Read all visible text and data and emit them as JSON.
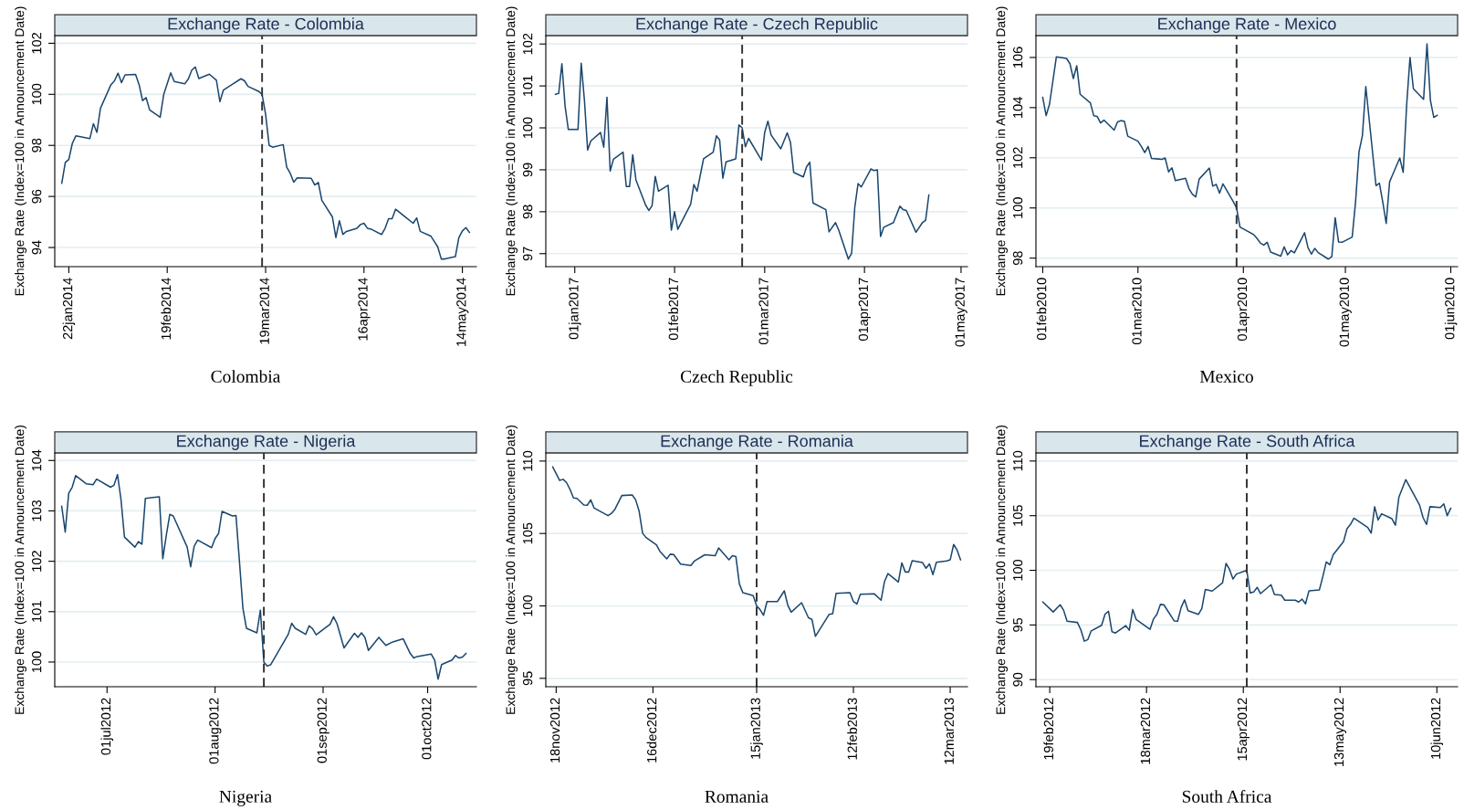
{
  "chart_data": [
    {
      "type": "line",
      "title": "Exchange Rate - Colombia",
      "ylabel": "Exchange Rate (Index=100 in Announcement Date)",
      "color": "#1a476f",
      "grid": "y",
      "x": [
        "2014-01-20",
        "2014-01-21",
        "2014-01-22",
        "2014-01-23",
        "2014-01-24",
        "2014-01-28",
        "2014-01-29",
        "2014-01-30",
        "2014-01-31",
        "2014-02-03",
        "2014-02-04",
        "2014-02-05",
        "2014-02-06",
        "2014-02-07",
        "2014-02-10",
        "2014-02-11",
        "2014-02-12",
        "2014-02-13",
        "2014-02-14",
        "2014-02-17",
        "2014-02-18",
        "2014-02-20",
        "2014-02-21",
        "2014-02-24",
        "2014-02-25",
        "2014-02-26",
        "2014-02-27",
        "2014-02-28",
        "2014-03-03",
        "2014-03-05",
        "2014-03-06",
        "2014-03-07",
        "2014-03-12",
        "2014-03-13",
        "2014-03-14",
        "2014-03-17",
        "2014-03-18",
        "2014-03-19",
        "2014-03-20",
        "2014-03-21",
        "2014-03-24",
        "2014-03-25",
        "2014-03-26",
        "2014-03-27",
        "2014-03-28",
        "2014-04-01",
        "2014-04-02",
        "2014-04-03",
        "2014-04-04",
        "2014-04-07",
        "2014-04-08",
        "2014-04-09",
        "2014-04-10",
        "2014-04-11",
        "2014-04-14",
        "2014-04-15",
        "2014-04-16",
        "2014-04-17",
        "2014-04-18",
        "2014-04-21",
        "2014-04-22",
        "2014-04-23",
        "2014-04-24",
        "2014-04-25",
        "2014-04-28",
        "2014-04-30",
        "2014-05-01",
        "2014-05-02",
        "2014-05-05",
        "2014-05-06",
        "2014-05-07",
        "2014-05-08",
        "2014-05-09",
        "2014-05-12",
        "2014-05-13",
        "2014-05-14",
        "2014-05-15",
        "2014-05-16"
      ],
      "values": [
        96.52,
        97.33,
        97.45,
        98.08,
        98.37,
        98.27,
        98.85,
        98.51,
        99.45,
        100.38,
        100.53,
        100.83,
        100.46,
        100.76,
        100.78,
        100.38,
        99.75,
        99.87,
        99.39,
        99.1,
        99.99,
        100.84,
        100.5,
        100.41,
        100.6,
        100.95,
        101.07,
        100.62,
        100.79,
        100.55,
        99.71,
        100.17,
        100.61,
        100.53,
        100.31,
        100.12,
        100.0,
        99.22,
        98.0,
        97.93,
        98.03,
        97.15,
        96.91,
        96.56,
        96.73,
        96.71,
        96.45,
        96.55,
        95.85,
        95.2,
        94.39,
        95.05,
        94.51,
        94.63,
        94.75,
        94.9,
        94.95,
        94.75,
        94.72,
        94.51,
        94.75,
        95.13,
        95.13,
        95.5,
        95.17,
        94.95,
        95.16,
        94.63,
        94.45,
        94.24,
        94.02,
        93.55,
        93.55,
        93.64,
        94.39,
        94.65,
        94.78,
        94.59
      ],
      "xlim": [
        "2014-01-18",
        "2014-05-18"
      ],
      "xticks": [
        {
          "value": "2014-01-22",
          "label": "22jan2014"
        },
        {
          "value": "2014-02-19",
          "label": "19feb2014"
        },
        {
          "value": "2014-03-19",
          "label": "19mar2014"
        },
        {
          "value": "2014-04-16",
          "label": "16apr2014"
        },
        {
          "value": "2014-05-14",
          "label": "14may2014"
        }
      ],
      "ylim": [
        93.25,
        102.3
      ],
      "yticks": [
        94,
        96,
        98,
        100,
        102
      ],
      "ref_lines": [
        {
          "axis": "x",
          "value": "2014-03-18",
          "color": "#333333",
          "line_style": "dashed"
        }
      ],
      "annotations": [
        "Colombia"
      ]
    },
    {
      "type": "line",
      "title": "Exchange Rate - Czech Republic",
      "ylabel": "Exchange Rate (Index=100 in Announcement Date)",
      "color": "#1a476f",
      "grid": "y",
      "x": [
        "2016-12-26",
        "2016-12-27",
        "2016-12-28",
        "2016-12-29",
        "2016-12-30",
        "2017-01-02",
        "2017-01-03",
        "2017-01-04",
        "2017-01-05",
        "2017-01-06",
        "2017-01-09",
        "2017-01-10",
        "2017-01-11",
        "2017-01-12",
        "2017-01-13",
        "2017-01-16",
        "2017-01-17",
        "2017-01-18",
        "2017-01-19",
        "2017-01-20",
        "2017-01-23",
        "2017-01-24",
        "2017-01-25",
        "2017-01-26",
        "2017-01-27",
        "2017-01-30",
        "2017-01-31",
        "2017-02-01",
        "2017-02-02",
        "2017-02-06",
        "2017-02-07",
        "2017-02-08",
        "2017-02-10",
        "2017-02-13",
        "2017-02-14",
        "2017-02-15",
        "2017-02-16",
        "2017-02-17",
        "2017-02-20",
        "2017-02-21",
        "2017-02-22",
        "2017-02-23",
        "2017-02-24",
        "2017-02-28",
        "2017-03-01",
        "2017-03-02",
        "2017-03-03",
        "2017-03-06",
        "2017-03-08",
        "2017-03-09",
        "2017-03-10",
        "2017-03-13",
        "2017-03-14",
        "2017-03-15",
        "2017-03-16",
        "2017-03-20",
        "2017-03-21",
        "2017-03-23",
        "2017-03-24",
        "2017-03-27",
        "2017-03-28",
        "2017-03-29",
        "2017-03-30",
        "2017-03-31",
        "2017-04-03",
        "2017-04-04",
        "2017-04-05",
        "2017-04-06",
        "2017-04-07",
        "2017-04-10",
        "2017-04-12",
        "2017-04-13",
        "2017-04-14",
        "2017-04-17",
        "2017-04-19",
        "2017-04-20",
        "2017-04-21"
      ],
      "values": [
        100.8,
        100.82,
        101.53,
        100.51,
        99.96,
        99.96,
        101.54,
        100.66,
        99.47,
        99.69,
        99.89,
        99.54,
        100.73,
        98.97,
        99.25,
        99.42,
        98.6,
        98.6,
        99.36,
        98.76,
        98.16,
        98.03,
        98.14,
        98.84,
        98.49,
        98.63,
        97.56,
        98.0,
        97.58,
        98.18,
        98.65,
        98.49,
        99.26,
        99.42,
        99.81,
        99.71,
        98.8,
        99.19,
        99.26,
        100.07,
        100.0,
        99.55,
        99.75,
        99.23,
        99.89,
        100.16,
        99.83,
        99.5,
        99.88,
        99.66,
        98.94,
        98.83,
        99.07,
        99.18,
        98.21,
        98.05,
        97.52,
        97.74,
        97.56,
        96.87,
        97.01,
        98.11,
        98.67,
        98.59,
        99.02,
        98.98,
        99.0,
        97.41,
        97.63,
        97.74,
        98.13,
        98.05,
        98.03,
        97.51,
        97.74,
        97.8,
        98.4
      ],
      "xlim": [
        "2016-12-23",
        "2017-05-03"
      ],
      "xticks": [
        {
          "value": "2017-01-01",
          "label": "01jan2017"
        },
        {
          "value": "2017-02-01",
          "label": "01feb2017"
        },
        {
          "value": "2017-03-01",
          "label": "01mar2017"
        },
        {
          "value": "2017-04-01",
          "label": "01apr2017"
        },
        {
          "value": "2017-05-01",
          "label": "01may2017"
        }
      ],
      "ylim": [
        96.69,
        102.2
      ],
      "yticks": [
        97,
        98,
        99,
        100,
        101,
        102
      ],
      "ref_lines": [
        {
          "axis": "x",
          "value": "2017-02-22",
          "color": "#333333",
          "line_style": "dashed"
        }
      ],
      "annotations": [
        "Czech Republic"
      ]
    },
    {
      "type": "line",
      "title": "Exchange Rate - Mexico",
      "ylabel": "Exchange Rate (Index=100 in Announcement Date)",
      "color": "#1a476f",
      "grid": "y",
      "x": [
        "2010-02-01",
        "2010-02-02",
        "2010-02-03",
        "2010-02-05",
        "2010-02-08",
        "2010-02-09",
        "2010-02-10",
        "2010-02-11",
        "2010-02-12",
        "2010-02-15",
        "2010-02-16",
        "2010-02-17",
        "2010-02-18",
        "2010-02-19",
        "2010-02-22",
        "2010-02-23",
        "2010-02-24",
        "2010-02-25",
        "2010-02-26",
        "2010-03-01",
        "2010-03-02",
        "2010-03-03",
        "2010-03-04",
        "2010-03-05",
        "2010-03-08",
        "2010-03-09",
        "2010-03-10",
        "2010-03-11",
        "2010-03-12",
        "2010-03-15",
        "2010-03-16",
        "2010-03-17",
        "2010-03-18",
        "2010-03-19",
        "2010-03-22",
        "2010-03-23",
        "2010-03-24",
        "2010-03-25",
        "2010-03-26",
        "2010-03-29",
        "2010-03-30",
        "2010-03-31",
        "2010-04-04",
        "2010-04-05",
        "2010-04-06",
        "2010-04-07",
        "2010-04-08",
        "2010-04-09",
        "2010-04-12",
        "2010-04-13",
        "2010-04-14",
        "2010-04-15",
        "2010-04-16",
        "2010-04-19",
        "2010-04-20",
        "2010-04-21",
        "2010-04-22",
        "2010-04-23",
        "2010-04-26",
        "2010-04-27",
        "2010-04-28",
        "2010-04-29",
        "2010-04-30",
        "2010-05-03",
        "2010-05-04",
        "2010-05-05",
        "2010-05-06",
        "2010-05-07",
        "2010-05-10",
        "2010-05-11",
        "2010-05-12",
        "2010-05-13",
        "2010-05-14",
        "2010-05-17",
        "2010-05-18",
        "2010-05-19",
        "2010-05-20",
        "2010-05-21",
        "2010-05-24",
        "2010-05-25",
        "2010-05-26",
        "2010-05-27",
        "2010-05-28"
      ],
      "values": [
        104.41,
        103.68,
        104.14,
        106.02,
        105.96,
        105.75,
        105.16,
        105.67,
        104.53,
        104.19,
        103.68,
        103.65,
        103.39,
        103.5,
        103.1,
        103.43,
        103.48,
        103.46,
        102.86,
        102.66,
        102.45,
        102.21,
        102.45,
        101.97,
        101.94,
        101.99,
        101.44,
        101.6,
        101.09,
        101.18,
        100.77,
        100.55,
        100.44,
        101.15,
        101.59,
        100.87,
        100.94,
        100.59,
        100.96,
        100.26,
        100.0,
        99.24,
        98.94,
        98.79,
        98.6,
        98.52,
        98.63,
        98.24,
        98.08,
        98.45,
        98.13,
        98.3,
        98.21,
        99.01,
        98.42,
        98.16,
        98.39,
        98.22,
        97.96,
        98.06,
        99.61,
        98.64,
        98.63,
        98.84,
        100.26,
        102.23,
        102.88,
        104.84,
        100.89,
        100.99,
        100.23,
        99.38,
        101.04,
        101.99,
        101.42,
        104.07,
        106.0,
        104.75,
        104.33,
        106.54,
        104.29,
        103.61,
        103.69
      ],
      "xlim": [
        "2010-01-30",
        "2010-06-03"
      ],
      "xticks": [
        {
          "value": "2010-02-01",
          "label": "01feb2010"
        },
        {
          "value": "2010-03-01",
          "label": "01mar2010"
        },
        {
          "value": "2010-04-01",
          "label": "01apr2010"
        },
        {
          "value": "2010-05-01",
          "label": "01may2010"
        },
        {
          "value": "2010-06-01",
          "label": "01jun2010"
        }
      ],
      "ylim": [
        97.66,
        106.87
      ],
      "yticks": [
        98,
        100,
        102,
        104,
        106
      ],
      "ref_lines": [
        {
          "axis": "x",
          "value": "2010-03-30",
          "color": "#333333",
          "line_style": "dashed"
        }
      ],
      "annotations": [
        "Mexico"
      ]
    },
    {
      "type": "line",
      "title": "Exchange Rate - Nigeria",
      "ylabel": "Exchange Rate (Index=100 in Announcement Date)",
      "color": "#1a476f",
      "grid": "y",
      "x": [
        "2012-06-18",
        "2012-06-19",
        "2012-06-20",
        "2012-06-21",
        "2012-06-22",
        "2012-06-25",
        "2012-06-27",
        "2012-06-28",
        "2012-07-02",
        "2012-07-03",
        "2012-07-04",
        "2012-07-05",
        "2012-07-06",
        "2012-07-09",
        "2012-07-10",
        "2012-07-11",
        "2012-07-12",
        "2012-07-16",
        "2012-07-17",
        "2012-07-18",
        "2012-07-19",
        "2012-07-20",
        "2012-07-24",
        "2012-07-25",
        "2012-07-26",
        "2012-07-27",
        "2012-07-31",
        "2012-08-01",
        "2012-08-02",
        "2012-08-03",
        "2012-08-06",
        "2012-08-07",
        "2012-08-08",
        "2012-08-09",
        "2012-08-10",
        "2012-08-13",
        "2012-08-14",
        "2012-08-15",
        "2012-08-16",
        "2012-08-17",
        "2012-08-22",
        "2012-08-23",
        "2012-08-24",
        "2012-08-27",
        "2012-08-28",
        "2012-08-29",
        "2012-08-30",
        "2012-09-03",
        "2012-09-04",
        "2012-09-05",
        "2012-09-07",
        "2012-09-10",
        "2012-09-11",
        "2012-09-12",
        "2012-09-13",
        "2012-09-14",
        "2012-09-17",
        "2012-09-19",
        "2012-09-21",
        "2012-09-24",
        "2012-09-26",
        "2012-09-27",
        "2012-09-28",
        "2012-10-02",
        "2012-10-03",
        "2012-10-04",
        "2012-10-05",
        "2012-10-08",
        "2012-10-09",
        "2012-10-10",
        "2012-10-11",
        "2012-10-12"
      ],
      "values": [
        103.09,
        102.58,
        103.35,
        103.47,
        103.7,
        103.54,
        103.52,
        103.63,
        103.47,
        103.51,
        103.72,
        103.23,
        102.48,
        102.28,
        102.39,
        102.34,
        103.25,
        103.28,
        102.05,
        102.51,
        102.93,
        102.9,
        102.28,
        101.89,
        102.3,
        102.42,
        102.27,
        102.45,
        102.55,
        102.99,
        102.9,
        102.91,
        101.99,
        101.06,
        100.67,
        100.58,
        101.03,
        100.0,
        99.92,
        99.95,
        100.55,
        100.77,
        100.67,
        100.55,
        100.72,
        100.66,
        100.54,
        100.75,
        100.9,
        100.76,
        100.28,
        100.57,
        100.49,
        100.58,
        100.49,
        100.23,
        100.49,
        100.33,
        100.4,
        100.46,
        100.17,
        100.08,
        100.11,
        100.16,
        100.04,
        99.66,
        99.95,
        100.04,
        100.13,
        100.08,
        100.1,
        100.17
      ],
      "xlim": [
        "2012-06-16",
        "2012-10-15"
      ],
      "xticks": [
        {
          "value": "2012-07-01",
          "label": "01jul2012"
        },
        {
          "value": "2012-08-01",
          "label": "01aug2012"
        },
        {
          "value": "2012-09-01",
          "label": "01sep2012"
        },
        {
          "value": "2012-10-01",
          "label": "01oct2012"
        }
      ],
      "ylim": [
        99.51,
        104.15
      ],
      "yticks": [
        100,
        101,
        102,
        103,
        104
      ],
      "ref_lines": [
        {
          "axis": "x",
          "value": "2012-08-15",
          "color": "#333333",
          "line_style": "dashed"
        }
      ],
      "annotations": [
        "Nigeria"
      ]
    },
    {
      "type": "line",
      "title": "Exchange Rate - Romania",
      "ylabel": "Exchange Rate (Index=100 in Announcement Date)",
      "color": "#1a476f",
      "grid": "y",
      "x": [
        "2012-11-17",
        "2012-11-18",
        "2012-11-19",
        "2012-11-20",
        "2012-11-21",
        "2012-11-22",
        "2012-11-23",
        "2012-11-24",
        "2012-11-26",
        "2012-11-27",
        "2012-11-28",
        "2012-11-29",
        "2012-12-03",
        "2012-12-04",
        "2012-12-05",
        "2012-12-07",
        "2012-12-10",
        "2012-12-11",
        "2012-12-12",
        "2012-12-13",
        "2012-12-14",
        "2012-12-17",
        "2012-12-18",
        "2012-12-20",
        "2012-12-21",
        "2012-12-22",
        "2012-12-24",
        "2012-12-27",
        "2012-12-28",
        "2012-12-31",
        "2013-01-03",
        "2013-01-04",
        "2013-01-07",
        "2013-01-08",
        "2013-01-09",
        "2013-01-10",
        "2013-01-11",
        "2013-01-14",
        "2013-01-15",
        "2013-01-16",
        "2013-01-17",
        "2013-01-18",
        "2013-01-21",
        "2013-01-23",
        "2013-01-24",
        "2013-01-25",
        "2013-01-28",
        "2013-01-30",
        "2013-01-31",
        "2013-02-01",
        "2013-02-05",
        "2013-02-06",
        "2013-02-07",
        "2013-02-11",
        "2013-02-12",
        "2013-02-13",
        "2013-02-14",
        "2013-02-18",
        "2013-02-20",
        "2013-02-21",
        "2013-02-22",
        "2013-02-25",
        "2013-02-26",
        "2013-02-27",
        "2013-02-28",
        "2013-03-01",
        "2013-03-04",
        "2013-03-05",
        "2013-03-06",
        "2013-03-07",
        "2013-03-08",
        "2013-03-11",
        "2013-03-12",
        "2013-03-13",
        "2013-03-14",
        "2013-03-15"
      ],
      "values": [
        109.59,
        109.13,
        108.66,
        108.74,
        108.51,
        108.05,
        107.45,
        107.42,
        106.97,
        106.95,
        107.32,
        106.75,
        106.23,
        106.39,
        106.67,
        107.62,
        107.66,
        107.32,
        106.54,
        105.02,
        104.72,
        104.22,
        103.77,
        103.25,
        103.57,
        103.55,
        102.88,
        102.79,
        103.1,
        103.53,
        103.46,
        104.0,
        103.18,
        103.46,
        103.4,
        101.52,
        100.91,
        100.71,
        100.0,
        99.74,
        99.35,
        100.3,
        100.3,
        101.04,
        100.06,
        99.57,
        100.22,
        99.18,
        99.07,
        97.9,
        99.42,
        99.46,
        100.87,
        100.91,
        100.3,
        100.13,
        100.8,
        100.84,
        100.39,
        101.69,
        102.23,
        101.65,
        102.97,
        102.34,
        102.34,
        103.12,
        102.99,
        102.6,
        102.9,
        102.16,
        103.01,
        103.1,
        103.18,
        104.24,
        103.85,
        103.18
      ],
      "xlim": [
        "2012-11-15",
        "2013-03-17"
      ],
      "xticks": [
        {
          "value": "2012-11-18",
          "label": "18nov2012"
        },
        {
          "value": "2012-12-16",
          "label": "16dec2012"
        },
        {
          "value": "2013-01-15",
          "label": "15jan2013"
        },
        {
          "value": "2013-02-12",
          "label": "12feb2013"
        },
        {
          "value": "2013-03-12",
          "label": "12mar2013"
        }
      ],
      "ylim": [
        94.42,
        110.56
      ],
      "yticks": [
        95,
        100,
        105,
        110
      ],
      "ref_lines": [
        {
          "axis": "x",
          "value": "2013-01-15",
          "color": "#333333",
          "line_style": "dashed"
        }
      ],
      "annotations": [
        "Romania"
      ]
    },
    {
      "type": "line",
      "title": "Exchange Rate - South Africa",
      "ylabel": "Exchange Rate (Index=100 in Announcement Date)",
      "color": "#1a476f",
      "grid": "y",
      "x": [
        "2012-02-17",
        "2012-02-20",
        "2012-02-22",
        "2012-02-23",
        "2012-02-24",
        "2012-02-27",
        "2012-02-28",
        "2012-02-29",
        "2012-03-01",
        "2012-03-02",
        "2012-03-05",
        "2012-03-06",
        "2012-03-07",
        "2012-03-08",
        "2012-03-09",
        "2012-03-12",
        "2012-03-13",
        "2012-03-14",
        "2012-03-15",
        "2012-03-19",
        "2012-03-20",
        "2012-03-21",
        "2012-03-22",
        "2012-03-23",
        "2012-03-26",
        "2012-03-27",
        "2012-03-28",
        "2012-03-29",
        "2012-03-30",
        "2012-04-02",
        "2012-04-03",
        "2012-04-04",
        "2012-04-06",
        "2012-04-09",
        "2012-04-10",
        "2012-04-11",
        "2012-04-12",
        "2012-04-13",
        "2012-04-16",
        "2012-04-17",
        "2012-04-18",
        "2012-04-19",
        "2012-04-20",
        "2012-04-23",
        "2012-04-24",
        "2012-04-26",
        "2012-04-27",
        "2012-04-30",
        "2012-05-01",
        "2012-05-02",
        "2012-05-03",
        "2012-05-04",
        "2012-05-07",
        "2012-05-08",
        "2012-05-09",
        "2012-05-10",
        "2012-05-11",
        "2012-05-14",
        "2012-05-15",
        "2012-05-16",
        "2012-05-17",
        "2012-05-21",
        "2012-05-22",
        "2012-05-23",
        "2012-05-24",
        "2012-05-25",
        "2012-05-28",
        "2012-05-29",
        "2012-05-30",
        "2012-06-01",
        "2012-06-05",
        "2012-06-06",
        "2012-06-07",
        "2012-06-08",
        "2012-06-11",
        "2012-06-12",
        "2012-06-13",
        "2012-06-14"
      ],
      "values": [
        97.1,
        96.19,
        96.85,
        96.36,
        95.34,
        95.23,
        94.55,
        93.52,
        93.66,
        94.46,
        94.97,
        95.99,
        96.25,
        94.38,
        94.26,
        94.94,
        94.52,
        96.42,
        95.51,
        94.6,
        95.54,
        95.97,
        96.88,
        96.85,
        95.37,
        95.34,
        96.59,
        97.3,
        96.31,
        95.97,
        96.51,
        98.24,
        98.1,
        98.86,
        100.63,
        100.09,
        99.2,
        99.66,
        100.0,
        97.93,
        98.01,
        98.44,
        97.87,
        98.69,
        97.78,
        97.73,
        97.27,
        97.27,
        97.1,
        97.36,
        96.93,
        98.13,
        98.21,
        99.43,
        100.77,
        100.51,
        101.42,
        102.64,
        103.81,
        104.2,
        104.77,
        103.92,
        103.41,
        105.82,
        104.6,
        105.17,
        104.72,
        104.12,
        106.68,
        108.3,
        105.97,
        104.83,
        104.2,
        105.82,
        105.74,
        106.08,
        105.0,
        105.68
      ],
      "xlim": [
        "2012-02-15",
        "2012-06-16"
      ],
      "xticks": [
        {
          "value": "2012-02-19",
          "label": "19feb2012"
        },
        {
          "value": "2012-03-18",
          "label": "18mar2012"
        },
        {
          "value": "2012-04-15",
          "label": "15apr2012"
        },
        {
          "value": "2012-05-13",
          "label": "13may2012"
        },
        {
          "value": "2012-06-10",
          "label": "10jun2012"
        }
      ],
      "ylim": [
        89.35,
        110.74
      ],
      "yticks": [
        90,
        95,
        100,
        105,
        110
      ],
      "ref_lines": [
        {
          "axis": "x",
          "value": "2012-04-16",
          "color": "#333333",
          "line_style": "dashed"
        }
      ],
      "annotations": [
        "South Africa"
      ]
    }
  ]
}
